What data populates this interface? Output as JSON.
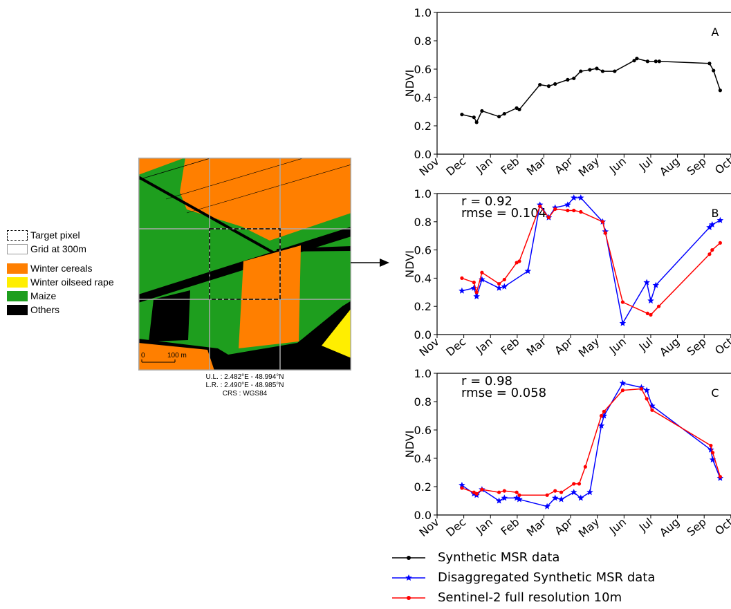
{
  "legend_left": {
    "items": [
      {
        "label": "Target pixel",
        "kind": "dashed"
      },
      {
        "label": "Grid at 300m",
        "kind": "grid"
      },
      {
        "label": "Winter cereals",
        "color": "#ff7f00"
      },
      {
        "label": "Winter oilseed rape",
        "color": "#ffee00"
      },
      {
        "label": "Maize",
        "color": "#1e9e1e"
      },
      {
        "label": "Others",
        "color": "#000000"
      }
    ]
  },
  "map": {
    "scale_zero": "0",
    "scale_label": "100 m",
    "caption": [
      "U.L. : 2.482°E - 48.994°N",
      "L.R. : 2.490°E - 48.985°N",
      "CRS : WGS84"
    ]
  },
  "colors": {
    "synthetic": "#000000",
    "disaggregated": "#0000ff",
    "sentinel": "#ff0000"
  },
  "chart_data": [
    {
      "type": "line",
      "panel_label": "A",
      "ylabel": "NDVI",
      "ylim": [
        0.0,
        1.0
      ],
      "yticks": [
        "0.0",
        "0.2",
        "0.4",
        "0.6",
        "0.8",
        "1.0"
      ],
      "xticks": [
        "Nov",
        "Dec",
        "Jan",
        "Feb",
        "Mar",
        "Apr",
        "May",
        "Jun",
        "Jul",
        "Aug",
        "Sep",
        "Oct"
      ],
      "xlim": [
        0,
        11.6
      ],
      "series": [
        {
          "name": "Synthetic MSR data",
          "color": "#000000",
          "marker": "dot",
          "x": [
            0.93,
            1.38,
            1.48,
            1.68,
            2.32,
            2.52,
            2.98,
            3.08,
            3.85,
            4.18,
            4.42,
            4.89,
            5.12,
            5.38,
            5.72,
            5.98,
            6.2,
            6.65,
            7.38,
            7.48,
            7.88,
            8.19,
            8.32,
            10.2,
            10.35,
            10.6
          ],
          "y": [
            0.28,
            0.26,
            0.225,
            0.305,
            0.265,
            0.285,
            0.325,
            0.315,
            0.49,
            0.48,
            0.495,
            0.525,
            0.535,
            0.585,
            0.595,
            0.605,
            0.585,
            0.585,
            0.66,
            0.675,
            0.655,
            0.655,
            0.655,
            0.64,
            0.59,
            0.45
          ]
        }
      ]
    },
    {
      "type": "line",
      "panel_label": "B",
      "annotation": [
        "r = 0.92",
        "rmse = 0.104"
      ],
      "ylabel": "NDVI",
      "ylim": [
        0.0,
        1.0
      ],
      "yticks": [
        "0.0",
        "0.2",
        "0.4",
        "0.6",
        "0.8",
        "1.0"
      ],
      "xticks": [
        "Nov",
        "Dec",
        "Jan",
        "Feb",
        "Mar",
        "Apr",
        "May",
        "Jun",
        "Jul",
        "Aug",
        "Sep",
        "Oct"
      ],
      "xlim": [
        0,
        11.6
      ],
      "series": [
        {
          "name": "Disaggregated Synthetic MSR data",
          "color": "#0000ff",
          "marker": "star",
          "x": [
            0.93,
            1.38,
            1.48,
            1.68,
            2.32,
            2.52,
            3.4,
            3.85,
            4.18,
            4.42,
            4.89,
            5.12,
            5.38,
            6.2,
            6.3,
            6.95,
            7.85,
            8.0,
            8.19,
            10.2,
            10.3,
            10.6
          ],
          "y": [
            0.31,
            0.33,
            0.27,
            0.39,
            0.33,
            0.34,
            0.45,
            0.92,
            0.83,
            0.9,
            0.92,
            0.97,
            0.97,
            0.8,
            0.73,
            0.08,
            0.37,
            0.24,
            0.35,
            0.76,
            0.78,
            0.81
          ]
        },
        {
          "name": "Sentinel-2 full resolution 10m",
          "color": "#ff0000",
          "marker": "dot",
          "x": [
            0.93,
            1.38,
            1.48,
            1.68,
            2.32,
            2.52,
            2.98,
            3.08,
            3.85,
            4.18,
            4.42,
            4.89,
            5.12,
            5.38,
            6.2,
            6.3,
            6.95,
            7.88,
            8.0,
            8.3,
            10.2,
            10.3,
            10.6
          ],
          "y": [
            0.4,
            0.37,
            0.3,
            0.44,
            0.36,
            0.39,
            0.51,
            0.52,
            0.91,
            0.83,
            0.89,
            0.88,
            0.88,
            0.87,
            0.8,
            0.72,
            0.23,
            0.15,
            0.14,
            0.2,
            0.57,
            0.6,
            0.65
          ]
        }
      ]
    },
    {
      "type": "line",
      "panel_label": "C",
      "annotation": [
        "r = 0.98",
        "rmse = 0.058"
      ],
      "ylabel": "NDVI",
      "ylim": [
        0.0,
        1.0
      ],
      "yticks": [
        "0.0",
        "0.2",
        "0.4",
        "0.6",
        "0.8",
        "1.0"
      ],
      "xticks": [
        "Nov",
        "Dec",
        "Jan",
        "Feb",
        "Mar",
        "Apr",
        "May",
        "Jun",
        "Jul",
        "Aug",
        "Sep",
        "Oct"
      ],
      "xlim": [
        0,
        11.6
      ],
      "series": [
        {
          "name": "Disaggregated Synthetic MSR data",
          "color": "#0000ff",
          "marker": "star",
          "x": [
            0.93,
            1.38,
            1.48,
            1.68,
            2.32,
            2.52,
            2.98,
            3.08,
            4.12,
            4.42,
            4.65,
            5.12,
            5.38,
            5.72,
            6.15,
            6.25,
            6.95,
            7.65,
            7.85,
            8.05,
            10.25,
            10.32,
            10.6
          ],
          "y": [
            0.21,
            0.15,
            0.14,
            0.18,
            0.1,
            0.12,
            0.12,
            0.11,
            0.06,
            0.12,
            0.11,
            0.16,
            0.12,
            0.16,
            0.63,
            0.7,
            0.93,
            0.9,
            0.88,
            0.77,
            0.46,
            0.39,
            0.26
          ]
        },
        {
          "name": "Sentinel-2 full resolution 10m",
          "color": "#ff0000",
          "marker": "dot",
          "x": [
            0.93,
            1.38,
            1.48,
            1.68,
            2.32,
            2.52,
            2.98,
            3.08,
            4.12,
            4.42,
            4.65,
            5.12,
            5.32,
            5.55,
            6.15,
            6.25,
            6.95,
            7.65,
            7.85,
            8.05,
            10.25,
            10.32,
            10.6
          ],
          "y": [
            0.19,
            0.16,
            0.15,
            0.18,
            0.16,
            0.17,
            0.16,
            0.14,
            0.14,
            0.17,
            0.16,
            0.22,
            0.22,
            0.34,
            0.7,
            0.73,
            0.88,
            0.89,
            0.82,
            0.74,
            0.49,
            0.44,
            0.27
          ]
        }
      ]
    }
  ],
  "bottom_legend": {
    "items": [
      {
        "label": "Synthetic MSR data",
        "color": "#000000",
        "marker": "dot"
      },
      {
        "label": "Disaggregated Synthetic MSR data",
        "color": "#0000ff",
        "marker": "star"
      },
      {
        "label": "Sentinel-2 full resolution 10m",
        "color": "#ff0000",
        "marker": "dot"
      }
    ]
  }
}
